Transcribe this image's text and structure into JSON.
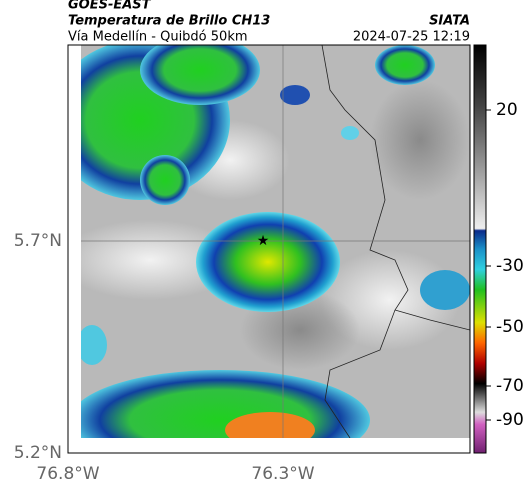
{
  "header": {
    "satellite": "GOES-EAST",
    "title": "Temperatura de Brillo CH13",
    "source": "SIATA",
    "region": "Vía Medellín - Quibdó 50km",
    "timestamp": "2024-07-25 12:19"
  },
  "axes": {
    "lat_labels": [
      "5.7°N",
      "5.2°N"
    ],
    "lon_labels": [
      "76.8°W",
      "76.3°W"
    ]
  },
  "colorbar": {
    "ticks": [
      20,
      -30,
      -50,
      -70,
      -90
    ]
  }
}
